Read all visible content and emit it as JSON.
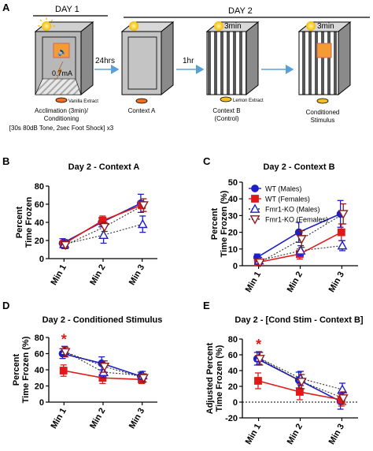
{
  "panels": {
    "A": {
      "label": "A",
      "day1": "DAY 1",
      "day2": "DAY 2",
      "timer_b": "3min",
      "timer_cs": "3min",
      "shock": "0.7mA",
      "arrow1": "24hrs",
      "arrow2": "1hr",
      "extract1": "Vanilla Extract",
      "extract2": "Lemon Extract",
      "caption1": "Acclimation (3min)/",
      "caption2": "Conditioning",
      "caption3": "[30s 80dB Tone, 2sec Foot Shock] x3",
      "ctx_a": "Context A",
      "ctx_b1": "Context B",
      "ctx_b2": "(Control)",
      "cs1": "Conditioned",
      "cs2": "Stimulus"
    },
    "B": {
      "label": "B"
    },
    "C": {
      "label": "C"
    },
    "D": {
      "label": "D"
    },
    "E": {
      "label": "E"
    }
  },
  "legend": [
    "WT  (Males)",
    "WT  (Females)",
    "Fmr1-KO (Males)",
    "Fmr1-KO (Females)"
  ],
  "colors": {
    "wt_m": "#1f1fc8",
    "wt_f": "#e01818",
    "ko_m": "#1f1fc8",
    "ko_f": "#8b1a1a",
    "dotted": "#333333"
  },
  "chart_data": [
    {
      "panel": "B",
      "type": "line",
      "title": "Day 2 - Context A",
      "ylabel": "Percent\nTime Frozen",
      "categories": [
        "Min 1",
        "Min 2",
        "Min 3"
      ],
      "ylim": [
        0,
        80
      ],
      "yticks": [
        0,
        20,
        40,
        60,
        80
      ],
      "series": [
        {
          "name": "WT  (Males)",
          "values": [
            17,
            40,
            61
          ],
          "errors": [
            5,
            5,
            10
          ]
        },
        {
          "name": "WT  (Females)",
          "values": [
            16,
            42,
            59
          ],
          "errors": [
            4,
            5,
            4
          ]
        },
        {
          "name": "Fmr1-KO (Males)",
          "values": [
            16,
            26,
            38
          ],
          "errors": [
            5,
            9,
            9
          ]
        },
        {
          "name": "Fmr1-KO (Females)",
          "values": [
            15,
            35,
            59
          ],
          "errors": [
            4,
            5,
            7
          ]
        }
      ]
    },
    {
      "panel": "C",
      "type": "line",
      "title": "Day 2 - Context B",
      "ylabel": "Percent\nTime Frozen (%)",
      "categories": [
        "Min 1",
        "Min 2",
        "Min 3"
      ],
      "ylim": [
        0,
        50
      ],
      "yticks": [
        0,
        10,
        20,
        30,
        40,
        50
      ],
      "legend": "top-left",
      "series": [
        {
          "name": "WT  (Males)",
          "values": [
            5,
            20,
            31
          ],
          "errors": [
            2,
            6,
            8
          ]
        },
        {
          "name": "WT  (Females)",
          "values": [
            2,
            7,
            20
          ],
          "errors": [
            1,
            3,
            5
          ]
        },
        {
          "name": "Fmr1-KO (Males)",
          "values": [
            3,
            9,
            12
          ],
          "errors": [
            2,
            3,
            3
          ]
        },
        {
          "name": "Fmr1-KO (Females)",
          "values": [
            2,
            16,
            31
          ],
          "errors": [
            2,
            5,
            6
          ]
        }
      ]
    },
    {
      "panel": "D",
      "type": "line",
      "title": "Day 2 - Conditioned Stimulus",
      "ylabel": "Percent\nTime Frozen (%)",
      "categories": [
        "Min 1",
        "Min 2",
        "Min 3"
      ],
      "ylim": [
        0,
        80
      ],
      "yticks": [
        0,
        20,
        40,
        60,
        80
      ],
      "annotation": "*",
      "series": [
        {
          "name": "WT  (Males)",
          "values": [
            60,
            48,
            32
          ],
          "errors": [
            6,
            8,
            5
          ]
        },
        {
          "name": "WT  (Females)",
          "values": [
            39,
            30,
            28
          ],
          "errors": [
            7,
            7,
            5
          ]
        },
        {
          "name": "Fmr1-KO (Males)",
          "values": [
            63,
            37,
            33
          ],
          "errors": [
            6,
            7,
            5
          ]
        },
        {
          "name": "Fmr1-KO (Females)",
          "values": [
            62,
            44,
            30
          ],
          "errors": [
            6,
            7,
            5
          ]
        }
      ]
    },
    {
      "panel": "E",
      "type": "line",
      "title": "Day 2 - [Cond Stim - Context B]",
      "ylabel": "Adjusted Percent\nTime Frozen (%)",
      "categories": [
        "Min 1",
        "Min 2",
        "Min 3"
      ],
      "ylim": [
        -20,
        80
      ],
      "yticks": [
        -20,
        0,
        20,
        40,
        60,
        80
      ],
      "annotation": "*",
      "series": [
        {
          "name": "WT  (Males)",
          "values": [
            55,
            28,
            1
          ],
          "errors": [
            8,
            10,
            10
          ]
        },
        {
          "name": "WT  (Females)",
          "values": [
            27,
            13,
            3
          ],
          "errors": [
            10,
            10,
            8
          ]
        },
        {
          "name": "Fmr1-KO (Males)",
          "values": [
            56,
            30,
            16
          ],
          "errors": [
            8,
            9,
            8
          ]
        },
        {
          "name": "Fmr1-KO (Females)",
          "values": [
            55,
            26,
            5
          ],
          "errors": [
            8,
            9,
            8
          ]
        }
      ]
    }
  ]
}
